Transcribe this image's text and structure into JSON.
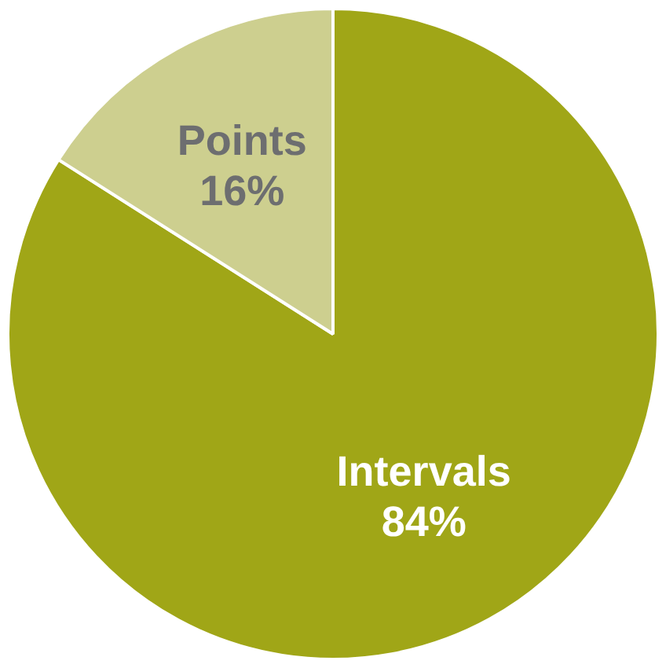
{
  "chart_data": {
    "type": "pie",
    "categories": [
      "Intervals",
      "Points"
    ],
    "values": [
      84,
      16
    ],
    "colors": [
      "#a0a617",
      "#cdcf8f"
    ],
    "value_labels": [
      "84%",
      "16%"
    ],
    "data_labels": true,
    "legend": false
  }
}
